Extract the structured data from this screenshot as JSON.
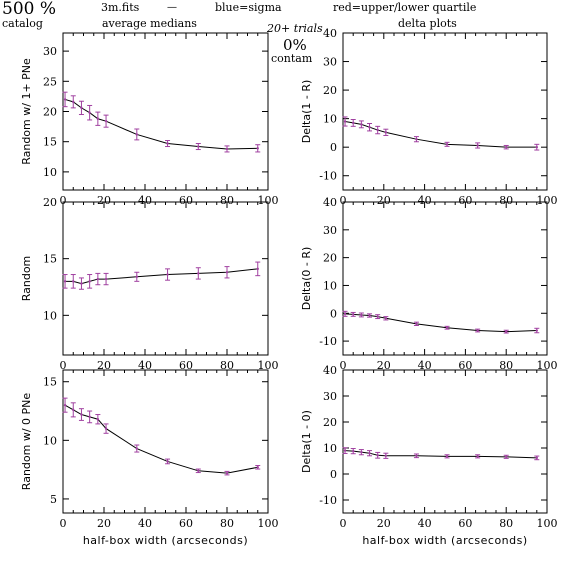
{
  "header": {
    "top_left_big": "500 %",
    "top_left_small": "catalog",
    "file": "3m.fits",
    "dash": "—",
    "subtitle_left": "average medians",
    "legend_blue": "blue=sigma",
    "legend_red": "red=upper/lower quartile",
    "trials": "20+ trials",
    "right_title": "delta plots",
    "contam_pct": "0%",
    "contam_label": "contam",
    "colors": {
      "blue": "#4040ff",
      "red": "#ff3030",
      "line": "#000000",
      "errbar": "#a040a0"
    }
  },
  "chart_data": [
    {
      "id": "p1",
      "type": "line",
      "ylabel": "Random w/ 1+ PNe",
      "xlabel": "",
      "xlim": [
        0,
        100
      ],
      "ylim": [
        7,
        33
      ],
      "xticks": [
        0,
        20,
        40,
        60,
        80,
        100
      ],
      "yticks": [
        10,
        15,
        20,
        25,
        30
      ],
      "x": [
        1,
        5,
        9,
        13,
        17,
        21,
        36,
        51,
        66,
        80,
        95
      ],
      "y": [
        22.0,
        21.6,
        20.6,
        19.8,
        18.8,
        18.4,
        16.2,
        14.7,
        14.2,
        13.8,
        13.9
      ],
      "err": [
        1.2,
        1.0,
        1.1,
        1.2,
        1.1,
        1.0,
        0.9,
        0.5,
        0.5,
        0.5,
        0.6
      ]
    },
    {
      "id": "p2",
      "type": "line",
      "ylabel": "Delta(1 - R)",
      "xlabel": "",
      "xlim": [
        0,
        100
      ],
      "ylim": [
        -15,
        40
      ],
      "xticks": [
        0,
        20,
        40,
        60,
        80,
        100
      ],
      "yticks": [
        -10,
        0,
        10,
        20,
        30,
        40
      ],
      "x": [
        1,
        5,
        9,
        13,
        17,
        21,
        36,
        51,
        66,
        80,
        95
      ],
      "y": [
        9.0,
        8.5,
        8.0,
        7.0,
        6.0,
        5.2,
        2.8,
        1.0,
        0.6,
        0.0,
        0.0
      ],
      "err": [
        1.6,
        1.2,
        1.2,
        1.3,
        1.3,
        1.1,
        0.9,
        0.7,
        0.9,
        0.6,
        1.0
      ]
    },
    {
      "id": "p3",
      "type": "line",
      "ylabel": "Random",
      "xlabel": "",
      "xlim": [
        0,
        100
      ],
      "ylim": [
        6.5,
        20
      ],
      "xticks": [
        0,
        20,
        40,
        60,
        80,
        100
      ],
      "yticks": [
        10,
        15,
        20
      ],
      "x": [
        1,
        5,
        9,
        13,
        17,
        21,
        36,
        51,
        66,
        80,
        95
      ],
      "y": [
        13.0,
        13.0,
        12.8,
        13.0,
        13.2,
        13.2,
        13.4,
        13.6,
        13.7,
        13.8,
        14.1
      ],
      "err": [
        0.6,
        0.6,
        0.5,
        0.6,
        0.5,
        0.5,
        0.4,
        0.5,
        0.5,
        0.5,
        0.6
      ]
    },
    {
      "id": "p4",
      "type": "line",
      "ylabel": "Delta(0 - R)",
      "xlabel": "",
      "xlim": [
        0,
        100
      ],
      "ylim": [
        -15,
        40
      ],
      "xticks": [
        0,
        20,
        40,
        60,
        80,
        100
      ],
      "yticks": [
        -10,
        0,
        10,
        20,
        30,
        40
      ],
      "x": [
        1,
        5,
        9,
        13,
        17,
        21,
        36,
        51,
        66,
        80,
        95
      ],
      "y": [
        -0.2,
        -0.4,
        -0.6,
        -0.8,
        -1.2,
        -1.8,
        -3.8,
        -5.2,
        -6.2,
        -6.6,
        -6.2
      ],
      "err": [
        0.9,
        0.7,
        0.7,
        0.6,
        0.7,
        0.6,
        0.6,
        0.5,
        0.5,
        0.5,
        0.8
      ]
    },
    {
      "id": "p5",
      "type": "line",
      "ylabel": "Random w/ 0 PNe",
      "xlabel": "half-box width (arcseconds)",
      "xlim": [
        0,
        100
      ],
      "ylim": [
        3.8,
        16
      ],
      "xticks": [
        0,
        20,
        40,
        60,
        80,
        100
      ],
      "yticks": [
        5,
        10,
        15
      ],
      "x": [
        1,
        5,
        9,
        13,
        17,
        21,
        36,
        51,
        66,
        80,
        95
      ],
      "y": [
        13.0,
        12.6,
        12.2,
        12.0,
        11.8,
        11.0,
        9.3,
        8.2,
        7.4,
        7.2,
        7.7
      ],
      "err": [
        0.6,
        0.6,
        0.5,
        0.5,
        0.4,
        0.4,
        0.3,
        0.2,
        0.15,
        0.15,
        0.15
      ]
    },
    {
      "id": "p6",
      "type": "line",
      "ylabel": "Delta(1 - 0)",
      "xlabel": "half-box width (arcseconds)",
      "xlim": [
        0,
        100
      ],
      "ylim": [
        -15,
        40
      ],
      "xticks": [
        0,
        20,
        40,
        60,
        80,
        100
      ],
      "yticks": [
        -10,
        0,
        10,
        20,
        30,
        40
      ],
      "x": [
        1,
        5,
        9,
        13,
        17,
        21,
        36,
        51,
        66,
        80,
        95
      ],
      "y": [
        9.0,
        8.8,
        8.4,
        8.0,
        7.2,
        7.0,
        7.0,
        6.8,
        6.8,
        6.6,
        6.2
      ],
      "err": [
        1.1,
        1.0,
        1.0,
        1.0,
        1.1,
        1.0,
        0.7,
        0.6,
        0.6,
        0.6,
        0.7
      ]
    }
  ]
}
